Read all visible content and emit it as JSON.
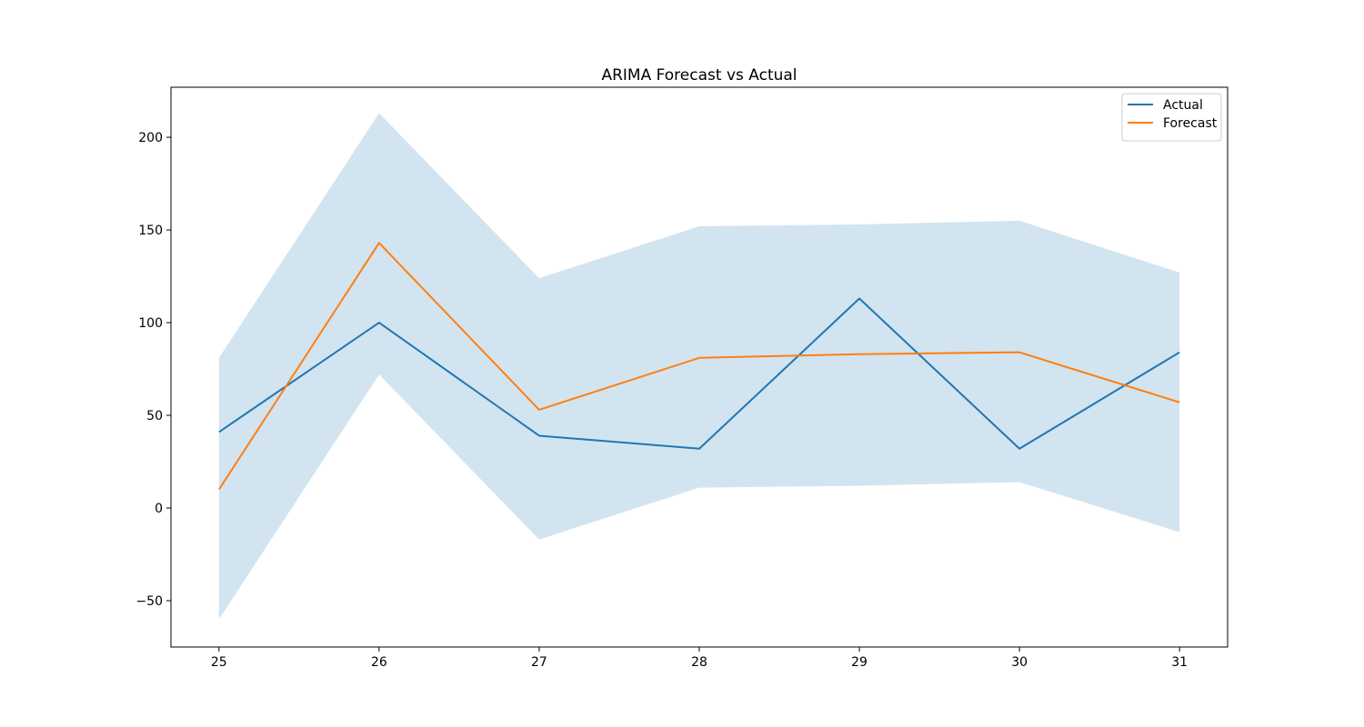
{
  "chart_data": {
    "type": "line",
    "title": "ARIMA Forecast vs Actual",
    "xlabel": "",
    "ylabel": "",
    "x": [
      25,
      26,
      27,
      28,
      29,
      30,
      31
    ],
    "xlim": [
      24.7,
      31.3
    ],
    "ylim": [
      -75,
      227
    ],
    "xticks": [
      25,
      26,
      27,
      28,
      29,
      30,
      31
    ],
    "yticks": [
      -50,
      0,
      50,
      100,
      150,
      200
    ],
    "yticklabels": [
      "−50",
      "0",
      "50",
      "100",
      "150",
      "200"
    ],
    "grid": false,
    "legend_position": "top-right",
    "series": [
      {
        "name": "Actual",
        "color": "#1f77b4",
        "values": [
          41,
          100,
          39,
          32,
          113,
          32,
          84
        ]
      },
      {
        "name": "Forecast",
        "color": "#ff7f0e",
        "values": [
          10,
          143,
          53,
          81,
          83,
          84,
          57
        ]
      }
    ],
    "confidence_band": {
      "color": "#1f77b4",
      "opacity": 0.2,
      "lower": [
        -60,
        72,
        -17,
        11,
        12,
        14,
        -13
      ],
      "upper": [
        81,
        213,
        124,
        152,
        153,
        155,
        127
      ]
    }
  }
}
